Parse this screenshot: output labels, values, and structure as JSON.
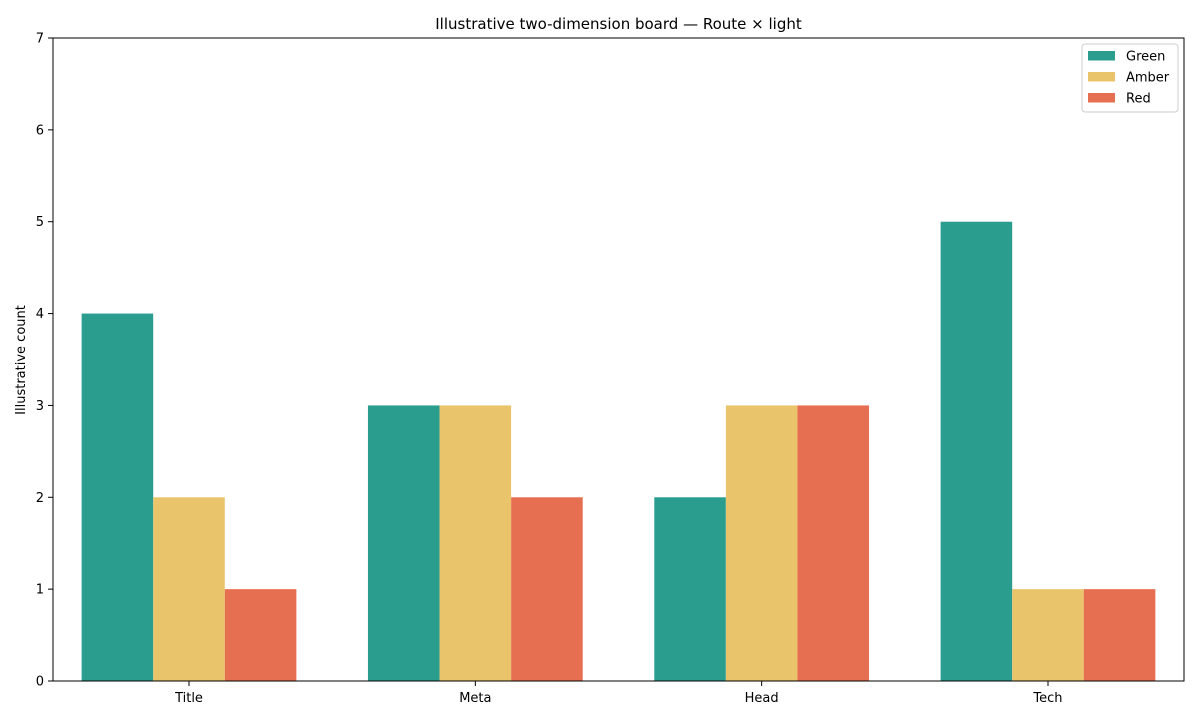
{
  "chart_data": {
    "type": "bar",
    "title": "Illustrative two-dimension board — Route × light",
    "xlabel": "",
    "ylabel": "Illustrative count",
    "categories": [
      "Title",
      "Meta",
      "Head",
      "Tech"
    ],
    "series": [
      {
        "name": "Green",
        "values": [
          4,
          3,
          2,
          5
        ],
        "color": "#2a9d8f"
      },
      {
        "name": "Amber",
        "values": [
          2,
          3,
          3,
          1
        ],
        "color": "#e9c46a"
      },
      {
        "name": "Red",
        "values": [
          1,
          2,
          3,
          1
        ],
        "color": "#e76f51"
      }
    ],
    "ylim": [
      0,
      7
    ],
    "yticks": [
      0,
      1,
      2,
      3,
      4,
      5,
      6,
      7
    ],
    "grid": false,
    "legend_position": "top-right"
  }
}
